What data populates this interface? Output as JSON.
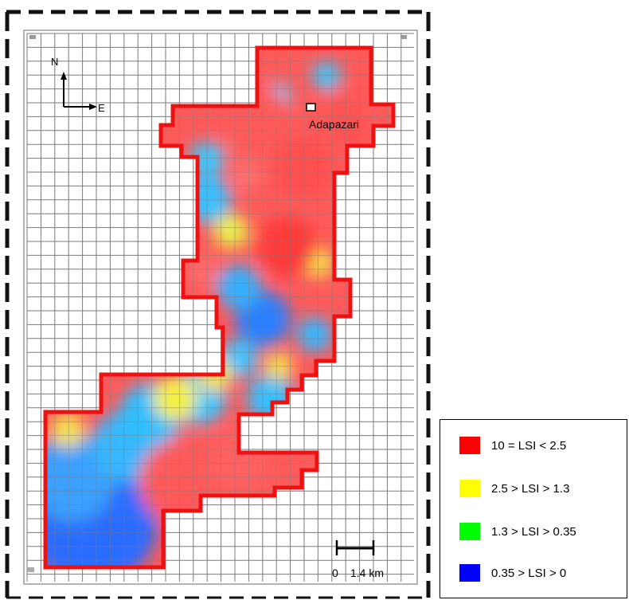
{
  "map": {
    "north_label": "N",
    "east_label": "E",
    "city_label": "Adapazari",
    "scale_zero": "0",
    "scale_label": "1.4 km",
    "outline_color": "#ee1111",
    "frame_color": "#000000"
  },
  "legend": {
    "items": [
      {
        "label": "10 = LSI < 2.5",
        "color": "#ff0000"
      },
      {
        "label": "2.5 > LSI > 1.3",
        "color": "#ffff00"
      },
      {
        "label": "1.3 > LSI > 0.35",
        "color": "#00ff00"
      },
      {
        "label": "0.35 > LSI > 0",
        "color": "#0000ff"
      }
    ]
  }
}
